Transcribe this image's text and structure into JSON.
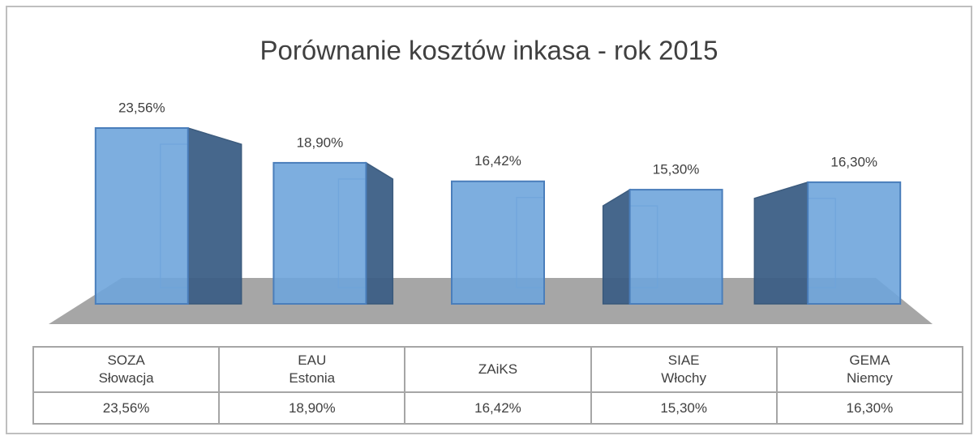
{
  "chart_data": {
    "type": "bar3d",
    "title": "Porównanie kosztów inkasa - rok 2015",
    "categories": [
      "SOZA\nSłowacja",
      "EAU\nEstonia",
      "ZAiKS",
      "SIAE\nWłochy",
      "GEMA\nNiemcy"
    ],
    "values": [
      23.56,
      18.9,
      16.42,
      15.3,
      16.3
    ],
    "value_labels": [
      "23,56%",
      "18,90%",
      "16,42%",
      "15,30%",
      "16,30%"
    ],
    "color": "#6fa5dc",
    "data_table": true
  }
}
